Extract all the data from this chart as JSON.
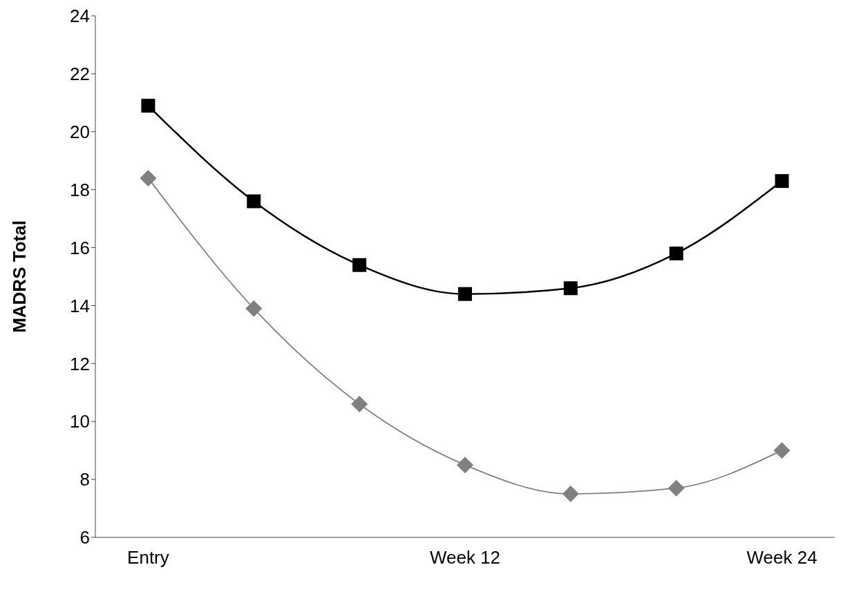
{
  "chart_data": {
    "type": "line",
    "ylabel": "MADRS Total",
    "categories": [
      "Entry",
      null,
      null,
      "Week 12",
      null,
      null,
      "Week 24"
    ],
    "series": [
      {
        "color": "#000000",
        "marker": "square",
        "values": [
          20.9,
          17.6,
          15.4,
          14.4,
          14.6,
          15.8,
          18.3
        ]
      },
      {
        "color": "#808080",
        "marker": "diamond",
        "values": [
          18.4,
          13.9,
          10.6,
          8.5,
          7.5,
          7.7,
          9.0
        ]
      }
    ],
    "ylim": [
      6,
      24
    ],
    "yticks": [
      6,
      8,
      10,
      12,
      14,
      16,
      18,
      20,
      22,
      24
    ],
    "grid": false,
    "legend": false
  }
}
